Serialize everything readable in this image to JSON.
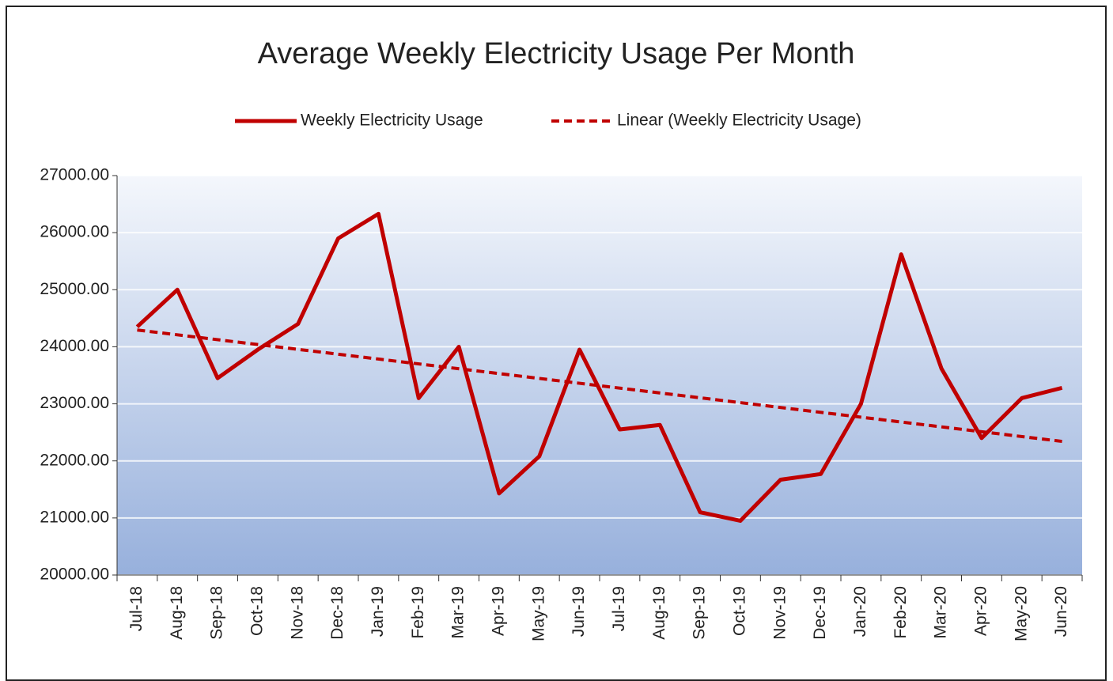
{
  "chart_data": {
    "type": "line",
    "title": "Average Weekly Electricity Usage Per Month",
    "categories": [
      "Jul-18",
      "Aug-18",
      "Sep-18",
      "Oct-18",
      "Nov-18",
      "Dec-18",
      "Jan-19",
      "Feb-19",
      "Mar-19",
      "Apr-19",
      "May-19",
      "Jun-19",
      "Jul-19",
      "Aug-19",
      "Sep-19",
      "Oct-19",
      "Nov-19",
      "Dec-19",
      "Jan-20",
      "Feb-20",
      "Mar-20",
      "Apr-20",
      "May-20",
      "Jun-20"
    ],
    "series": [
      {
        "name": "Weekly Electricity Usage",
        "color": "#c00000",
        "values": [
          24350,
          25000,
          23450,
          23950,
          24400,
          25900,
          26330,
          23100,
          24000,
          21430,
          22080,
          23950,
          22550,
          22630,
          21100,
          20950,
          21670,
          21770,
          23000,
          25620,
          23620,
          22400,
          23100,
          23280
        ]
      }
    ],
    "trendline": {
      "name": "Linear (Weekly Electricity Usage)",
      "kind": "linear",
      "color": "#c00000"
    },
    "ylim": [
      20000,
      27000
    ],
    "yticks": [
      {
        "value": 20000,
        "label": "20000.00"
      },
      {
        "value": 21000,
        "label": "21000.00"
      },
      {
        "value": 22000,
        "label": "22000.00"
      },
      {
        "value": 23000,
        "label": "23000.00"
      },
      {
        "value": 24000,
        "label": "24000.00"
      },
      {
        "value": 25000,
        "label": "25000.00"
      },
      {
        "value": 26000,
        "label": "26000.00"
      },
      {
        "value": 27000,
        "label": "27000.00"
      }
    ],
    "grid": true
  }
}
